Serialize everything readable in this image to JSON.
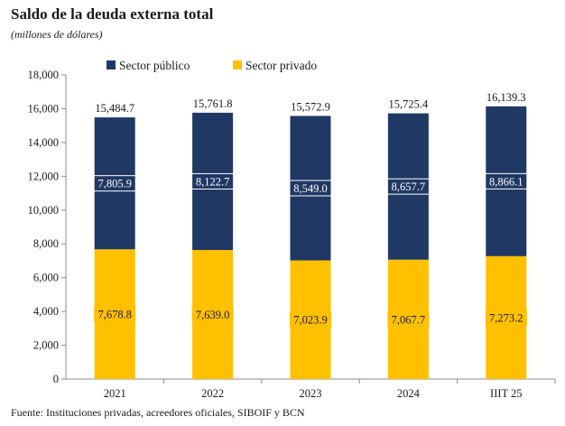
{
  "title": "Saldo de la deuda externa total",
  "subtitle": "(millones de dólares)",
  "source": "Fuente: Instituciones privadas, acreedores oficiales, SIBOIF y BCN",
  "chart_data": {
    "type": "bar",
    "stacked": true,
    "categories": [
      "2021",
      "2022",
      "2023",
      "2024",
      "IIIT 25"
    ],
    "series": [
      {
        "name": "Sector público",
        "values": [
          7805.9,
          8122.7,
          8549.0,
          8657.7,
          8866.1
        ],
        "labels": [
          "7,805.9",
          "8,122.7",
          "8,549.0",
          "8,657.7",
          "8,866.1"
        ],
        "color": "#203864"
      },
      {
        "name": "Sector privado",
        "values": [
          7678.8,
          7639.0,
          7023.9,
          7067.7,
          7273.2
        ],
        "labels": [
          "7,678.8",
          "7,639.0",
          "7,023.9",
          "7,067.7",
          "7,273.2"
        ],
        "color": "#FFC000"
      }
    ],
    "totals": [
      15484.7,
      15761.8,
      15572.9,
      15725.4,
      16139.3
    ],
    "total_labels": [
      "15,484.7",
      "15,761.8",
      "15,572.9",
      "15,725.4",
      "16,139.3"
    ],
    "yticks": [
      0,
      2000,
      4000,
      6000,
      8000,
      10000,
      12000,
      14000,
      16000,
      18000
    ],
    "ytick_labels": [
      "0",
      "2,000",
      "4,000",
      "6,000",
      "8,000",
      "10,000",
      "12,000",
      "14,000",
      "16,000",
      "18,000"
    ],
    "ylim": [
      0,
      18000
    ],
    "legend_position": "top-left",
    "grid": false
  }
}
